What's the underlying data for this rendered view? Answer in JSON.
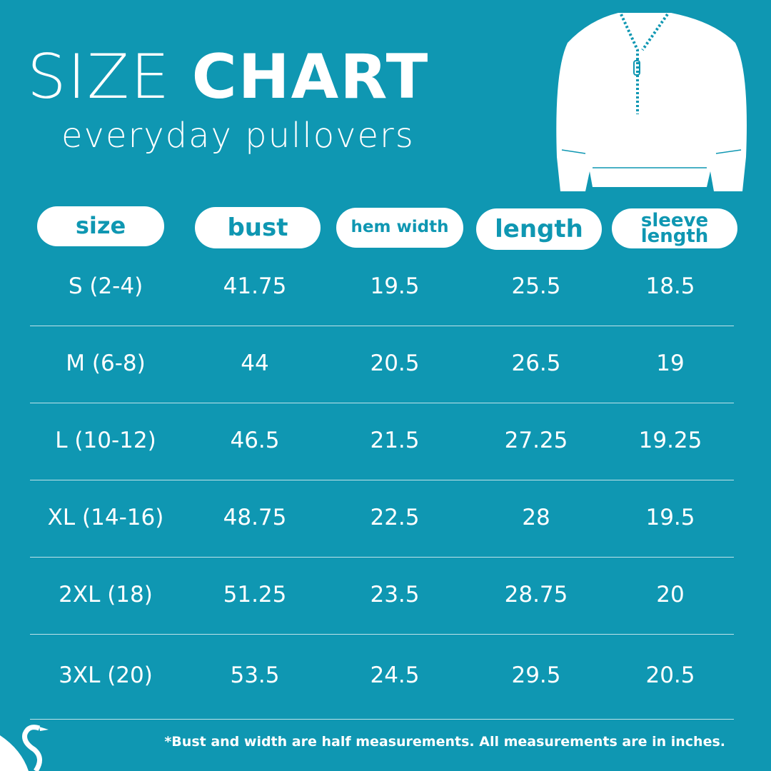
{
  "header": {
    "title_light": "SIZE",
    "title_bold": "CHART",
    "subtitle": "everyday pullovers"
  },
  "table": {
    "columns": [
      "size",
      "bust",
      "hem width",
      "length",
      "sleeve length"
    ],
    "rows": [
      [
        "S (2-4)",
        41.75,
        19.5,
        25.5,
        18.5
      ],
      [
        "M (6-8)",
        44,
        20.5,
        26.5,
        19
      ],
      [
        "L (10-12)",
        46.5,
        21.5,
        27.25,
        19.25
      ],
      [
        "XL (14-16)",
        48.75,
        22.5,
        28,
        19.5
      ],
      [
        "2XL (18)",
        51.25,
        23.5,
        28.75,
        20
      ],
      [
        "3XL (20)",
        53.5,
        24.5,
        29.5,
        20.5
      ]
    ]
  },
  "footnote": "*Bust and width are half measurements. All measurements are in inches."
}
